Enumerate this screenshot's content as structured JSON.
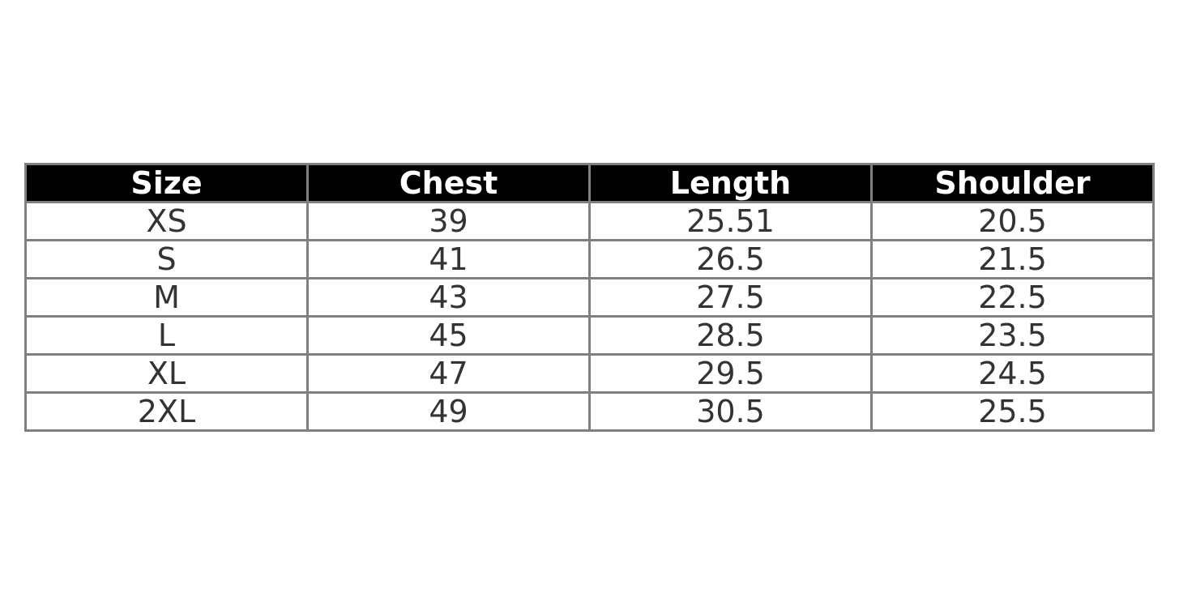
{
  "chart_data": {
    "type": "table",
    "columns": [
      "Size",
      "Chest",
      "Length",
      "Shoulder"
    ],
    "rows": [
      [
        "XS",
        "39",
        "25.51",
        "20.5"
      ],
      [
        "S",
        "41",
        "26.5",
        "21.5"
      ],
      [
        "M",
        "43",
        "27.5",
        "22.5"
      ],
      [
        "L",
        "45",
        "28.5",
        "23.5"
      ],
      [
        "XL",
        "47",
        "29.5",
        "24.5"
      ],
      [
        "2XL",
        "49",
        "30.5",
        "25.5"
      ]
    ],
    "header_background": "#000000",
    "header_text_color": "#ffffff",
    "cell_text_color": "#333333",
    "border_color": "#808080"
  }
}
